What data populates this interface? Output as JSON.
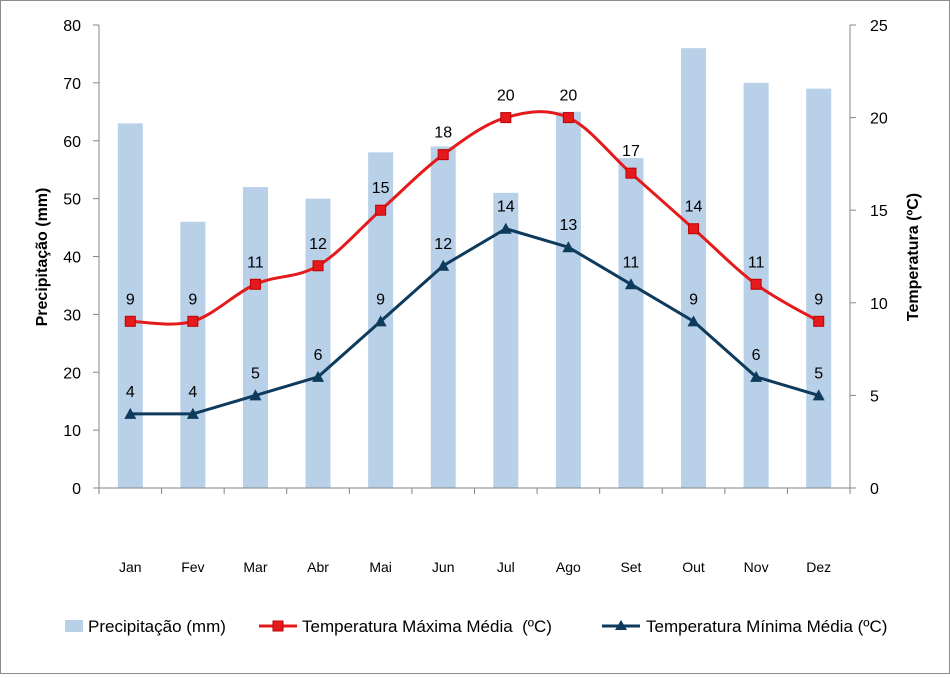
{
  "chart_data": {
    "type": "bar",
    "categories": [
      "Jan",
      "Fev",
      "Mar",
      "Abr",
      "Mai",
      "Jun",
      "Jul",
      "Ago",
      "Set",
      "Out",
      "Nov",
      "Dez"
    ],
    "series": [
      {
        "name": "Precipitação (mm)",
        "kind": "bar",
        "axis": "left",
        "color": "#b8d0e8",
        "values": [
          63,
          46,
          52,
          50,
          58,
          59,
          51,
          65,
          57,
          76,
          70,
          69
        ]
      },
      {
        "name": "Temperatura Máxima Média  (ºC)",
        "kind": "line",
        "axis": "right",
        "color": "#e41a1c",
        "marker": "square",
        "values": [
          9,
          9,
          11,
          12,
          15,
          18,
          20,
          20,
          17,
          14,
          11,
          9
        ]
      },
      {
        "name": "Temperatura Mínima Média (ºC)",
        "kind": "line",
        "axis": "right",
        "color": "#0e3a5c",
        "marker": "triangle",
        "values": [
          4,
          4,
          5,
          6,
          9,
          12,
          14,
          13,
          11,
          9,
          6,
          5
        ]
      }
    ],
    "ylabel_left": "Precipitação (mm)",
    "ylabel_right": "Temperatura (ºC)",
    "ylim_left": [
      0,
      80
    ],
    "ylim_right": [
      0,
      25
    ],
    "yticks_left": [
      "0",
      "10",
      "20",
      "30",
      "40",
      "50",
      "60",
      "70",
      "80"
    ],
    "yticks_right": [
      "0",
      "5",
      "10",
      "15",
      "20",
      "25"
    ],
    "grid": false,
    "legend_position": "bottom"
  }
}
